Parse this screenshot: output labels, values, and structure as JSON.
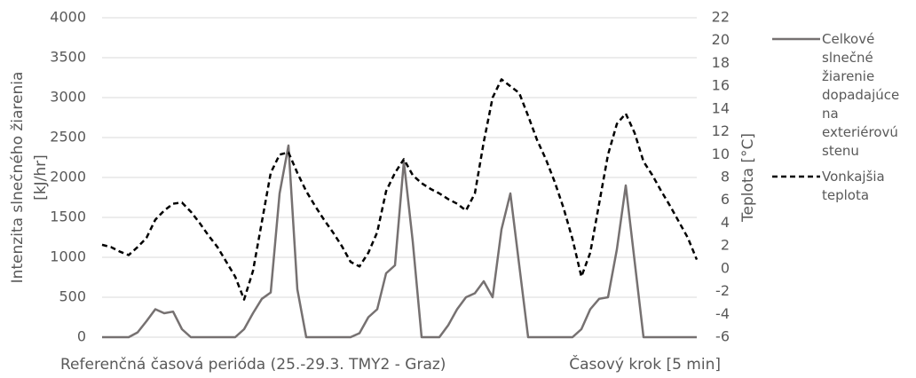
{
  "chart_data": {
    "type": "line",
    "ylabel": [
      "Intenzita slnečného žiarenia",
      "[kJ/hr]"
    ],
    "y2label": "Teplota [°C]",
    "annotation": "Referenčná časová perióda (25.-29.3. TMY2 - Graz)",
    "xlabel": "Časový krok [5 min]",
    "ylim": [
      0,
      4000
    ],
    "yticks": [
      0,
      500,
      1000,
      1500,
      2000,
      2500,
      3000,
      3500,
      4000
    ],
    "y2lim": [
      -6,
      22
    ],
    "y2ticks": [
      -6,
      -4,
      -2,
      0,
      2,
      4,
      6,
      8,
      10,
      12,
      14,
      16,
      18,
      20,
      22
    ],
    "grid": true,
    "legend": "right",
    "series": [
      {
        "name": "Celkové slnečné žiarenie dopadajúce na exteriérovú stenu",
        "color": "#767171",
        "dash": "solid",
        "values": [
          0,
          0,
          0,
          0,
          60,
          200,
          350,
          300,
          320,
          100,
          0,
          0,
          0,
          0,
          0,
          0,
          100,
          300,
          480,
          560,
          1800,
          2400,
          600,
          0,
          0,
          0,
          0,
          0,
          0,
          50,
          250,
          350,
          800,
          900,
          2200,
          1200,
          0,
          0,
          0,
          150,
          350,
          500,
          550,
          700,
          500,
          1350,
          1800,
          900,
          0,
          0,
          0,
          0,
          0,
          0,
          100,
          350,
          480,
          500,
          1100,
          1900,
          950,
          0,
          0,
          0,
          0,
          0,
          0,
          0
        ]
      },
      {
        "name": "Vonkajšia teplota",
        "color": "#000000",
        "dash": "dashed",
        "axis": "y2",
        "values": [
          2.1,
          1.9,
          1.5,
          1.2,
          1.9,
          2.7,
          4.3,
          5.1,
          5.7,
          5.8,
          5.0,
          4.0,
          2.9,
          1.9,
          0.6,
          -0.7,
          -2.7,
          -0.2,
          4.1,
          8.4,
          10.0,
          10.2,
          8.4,
          6.8,
          5.5,
          4.3,
          3.2,
          2.0,
          0.6,
          0.2,
          1.4,
          3.2,
          6.8,
          8.4,
          9.6,
          8.2,
          7.5,
          7.0,
          6.6,
          6.1,
          5.7,
          5.1,
          6.6,
          11.1,
          15.0,
          16.6,
          16.0,
          15.4,
          13.4,
          11.3,
          9.6,
          7.6,
          5.3,
          2.6,
          -0.7,
          1.4,
          5.7,
          10.0,
          12.7,
          13.6,
          11.9,
          9.4,
          8.2,
          6.8,
          5.5,
          4.1,
          2.7,
          0.8
        ]
      }
    ]
  }
}
